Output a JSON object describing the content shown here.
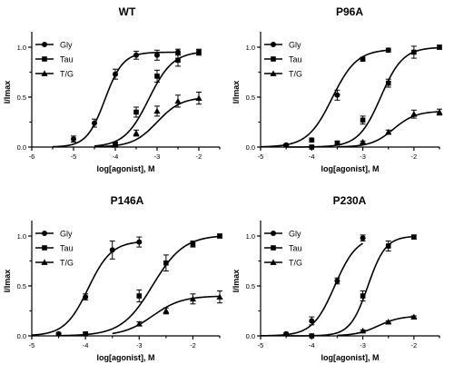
{
  "chart_data": [
    {
      "type": "scatter",
      "title": "WT",
      "xlabel": "log[agonist], M",
      "ylabel": "I/Imax",
      "xlim": [
        -6,
        -1.5
      ],
      "ylim": [
        0,
        1.1
      ],
      "xticks": [
        "-6",
        "-5",
        "-4",
        "-3",
        "-2"
      ],
      "yticks": [
        "0.0",
        "0.5",
        "1.0"
      ],
      "legend_position": "top-left",
      "series": [
        {
          "name": "Gly",
          "marker": "circle",
          "x": [
            -5.0,
            -4.5,
            -4.0,
            -3.5,
            -3.0,
            -2.5
          ],
          "y": [
            0.08,
            0.24,
            0.73,
            0.92,
            0.92,
            0.95
          ],
          "err": [
            0.03,
            0.04,
            0.05,
            0.04,
            0.05,
            0.03
          ],
          "ec50": -4.25,
          "hill": 2.0,
          "top": 0.95
        },
        {
          "name": "Tau",
          "marker": "square",
          "x": [
            -4.0,
            -3.5,
            -3.0,
            -2.5,
            -2.0
          ],
          "y": [
            0.03,
            0.35,
            0.71,
            0.87,
            0.95
          ],
          "err": [
            0.02,
            0.05,
            0.06,
            0.06,
            0.03
          ],
          "ec50": -3.2,
          "hill": 1.5,
          "top": 0.96
        },
        {
          "name": "T/G",
          "marker": "triangle",
          "x": [
            -4.0,
            -3.5,
            -3.0,
            -2.5,
            -2.0
          ],
          "y": [
            0.02,
            0.14,
            0.36,
            0.46,
            0.49
          ],
          "err": [
            0.01,
            0.03,
            0.05,
            0.06,
            0.06
          ],
          "ec50": -3.0,
          "hill": 1.5,
          "top": 0.5
        }
      ]
    },
    {
      "type": "scatter",
      "title": "P96A",
      "xlabel": "log[agonist], M",
      "ylabel": "I/Imax",
      "xlim": [
        -5,
        -1.5
      ],
      "ylim": [
        0,
        1.1
      ],
      "xticks": [
        "-5",
        "-4",
        "-3",
        "-2"
      ],
      "yticks": [
        "0.0",
        "0.5",
        "1.0"
      ],
      "legend_position": "top-left",
      "series": [
        {
          "name": "Gly",
          "marker": "circle",
          "x": [
            -4.5,
            -4.0,
            -3.5,
            -3.0,
            -2.5
          ],
          "y": [
            0.02,
            0.07,
            0.52,
            0.88,
            0.97
          ],
          "err": [
            0.01,
            0.02,
            0.05,
            0.02,
            0.02
          ],
          "ec50": -3.6,
          "hill": 1.8,
          "top": 0.98
        },
        {
          "name": "Tau",
          "marker": "square",
          "x": [
            -4.0,
            -3.5,
            -3.0,
            -2.5,
            -2.0,
            -1.5
          ],
          "y": [
            0.0,
            0.04,
            0.27,
            0.64,
            0.95,
            1.0
          ],
          "err": [
            0.01,
            0.02,
            0.04,
            0.04,
            0.06,
            0.02
          ],
          "ec50": -2.65,
          "hill": 2.0,
          "top": 1.0
        },
        {
          "name": "T/G",
          "marker": "triangle",
          "x": [
            -3.0,
            -2.5,
            -2.0,
            -1.5
          ],
          "y": [
            0.05,
            0.15,
            0.33,
            0.35
          ],
          "err": [
            0.01,
            0.02,
            0.04,
            0.03
          ],
          "ec50": -2.4,
          "hill": 2.0,
          "top": 0.36
        }
      ]
    },
    {
      "type": "scatter",
      "title": "P146A",
      "xlabel": "log[agonist], M",
      "ylabel": "I/Imax",
      "xlim": [
        -5,
        -1.5
      ],
      "ylim": [
        0,
        1.1
      ],
      "xticks": [
        "-5",
        "-4",
        "-3",
        "-2"
      ],
      "yticks": [
        "0.0",
        "0.5",
        "1.0"
      ],
      "legend_position": "top-left",
      "series": [
        {
          "name": "Gly",
          "marker": "circle",
          "x": [
            -4.5,
            -4.0,
            -3.5,
            -3.0
          ],
          "y": [
            0.02,
            0.39,
            0.86,
            0.94
          ],
          "err": [
            0.01,
            0.03,
            0.09,
            0.05
          ],
          "ec50": -3.95,
          "hill": 2.0,
          "top": 0.95
        },
        {
          "name": "Tau",
          "marker": "square",
          "x": [
            -4.0,
            -3.0,
            -2.5,
            -2.0,
            -1.5
          ],
          "y": [
            0.02,
            0.4,
            0.73,
            0.92,
            1.0
          ],
          "err": [
            0.01,
            0.06,
            0.08,
            0.03,
            0.02
          ],
          "ec50": -2.75,
          "hill": 1.5,
          "top": 1.01
        },
        {
          "name": "T/G",
          "marker": "triangle",
          "x": [
            -3.0,
            -2.5,
            -2.0,
            -1.5
          ],
          "y": [
            0.12,
            0.25,
            0.37,
            0.39
          ],
          "err": [
            0.02,
            0.03,
            0.05,
            0.06
          ],
          "ec50": -2.75,
          "hill": 1.6,
          "top": 0.4
        }
      ]
    },
    {
      "type": "scatter",
      "title": "P230A",
      "xlabel": "log[agonist], M",
      "ylabel": "I/Imax",
      "xlim": [
        -5,
        -1.5
      ],
      "ylim": [
        0,
        1.1
      ],
      "xticks": [
        "-5",
        "-4",
        "-3",
        "-2"
      ],
      "yticks": [
        "0.0",
        "0.5",
        "1.0"
      ],
      "legend_position": "top-left",
      "series": [
        {
          "name": "Gly",
          "marker": "circle",
          "x": [
            -4.5,
            -4.0,
            -3.5,
            -3.0
          ],
          "y": [
            0.02,
            0.15,
            0.55,
            0.98
          ],
          "err": [
            0.01,
            0.04,
            0.03,
            0.03
          ],
          "ec50": -3.55,
          "hill": 2.0,
          "top": 1.0
        },
        {
          "name": "Tau",
          "marker": "square",
          "x": [
            -4.0,
            -3.0,
            -2.5,
            -2.0
          ],
          "y": [
            0.0,
            0.4,
            0.9,
            0.99
          ],
          "err": [
            0.01,
            0.05,
            0.05,
            0.02
          ],
          "ec50": -2.9,
          "hill": 2.5,
          "top": 1.0
        },
        {
          "name": "T/G",
          "marker": "triangle",
          "x": [
            -3.0,
            -2.5,
            -2.0
          ],
          "y": [
            0.05,
            0.14,
            0.19
          ],
          "err": [
            0.01,
            0.01,
            0.01
          ],
          "ec50": -2.7,
          "hill": 2.0,
          "top": 0.2
        }
      ]
    }
  ]
}
